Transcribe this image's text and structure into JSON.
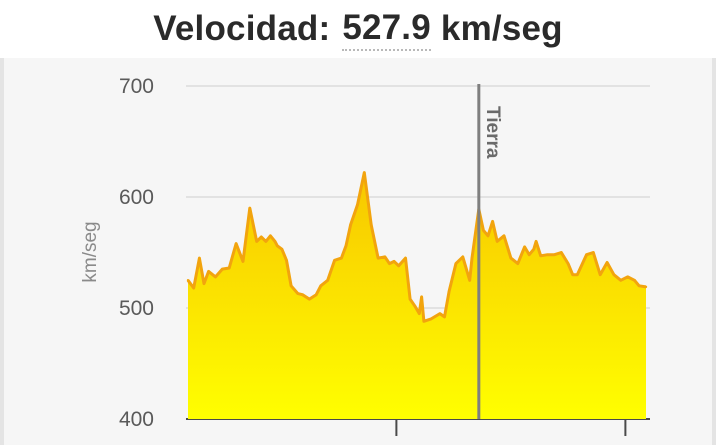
{
  "header": {
    "label": "Velocidad:",
    "value": "527.9",
    "unit": "km/seg"
  },
  "colors": {
    "line": "#f2a40e",
    "fill_top": "#f7c600",
    "fill_bottom": "#ffff00",
    "grid": "#dcdcdc",
    "marker": "#7f7f7f"
  },
  "chart_data": {
    "type": "area",
    "ylabel": "km/seg",
    "ylim": [
      400,
      700
    ],
    "yticks": [
      "400",
      "500",
      "600",
      "700"
    ],
    "grid": true,
    "marker": {
      "label": "Tierra",
      "x": 0.635
    },
    "x": [
      0,
      0.0125,
      0.025,
      0.035,
      0.045,
      0.06,
      0.075,
      0.09,
      0.105,
      0.12,
      0.135,
      0.15,
      0.16,
      0.17,
      0.18,
      0.19,
      0.195,
      0.205,
      0.215,
      0.225,
      0.24,
      0.25,
      0.265,
      0.28,
      0.29,
      0.305,
      0.32,
      0.335,
      0.345,
      0.355,
      0.37,
      0.385,
      0.4,
      0.415,
      0.43,
      0.44,
      0.45,
      0.46,
      0.475,
      0.485,
      0.495,
      0.505,
      0.51,
      0.515,
      0.53,
      0.55,
      0.56,
      0.57,
      0.585,
      0.6,
      0.615,
      0.62,
      0.635,
      0.645,
      0.655,
      0.665,
      0.675,
      0.69,
      0.705,
      0.72,
      0.735,
      0.745,
      0.755,
      0.76,
      0.77,
      0.785,
      0.8,
      0.815,
      0.83,
      0.84,
      0.85,
      0.87,
      0.885,
      0.9,
      0.915,
      0.93,
      0.945,
      0.96,
      0.975,
      0.985,
      1.0
    ],
    "values": [
      525,
      518,
      545,
      522,
      533,
      528,
      535,
      536,
      558,
      542,
      590,
      560,
      564,
      560,
      565,
      560,
      556,
      553,
      543,
      520,
      513,
      512,
      508,
      512,
      520,
      525,
      543,
      545,
      556,
      575,
      593,
      622,
      575,
      545,
      546,
      540,
      542,
      538,
      545,
      508,
      502,
      495,
      510,
      488,
      490,
      495,
      492,
      515,
      540,
      546,
      525,
      545,
      589,
      570,
      565,
      578,
      560,
      565,
      545,
      540,
      555,
      548,
      553,
      560,
      547,
      548,
      548,
      550,
      540,
      530,
      530,
      548,
      550,
      530,
      541,
      530,
      525,
      528,
      525,
      520,
      519
    ],
    "x_ticks": [
      0.455,
      0.955
    ]
  }
}
